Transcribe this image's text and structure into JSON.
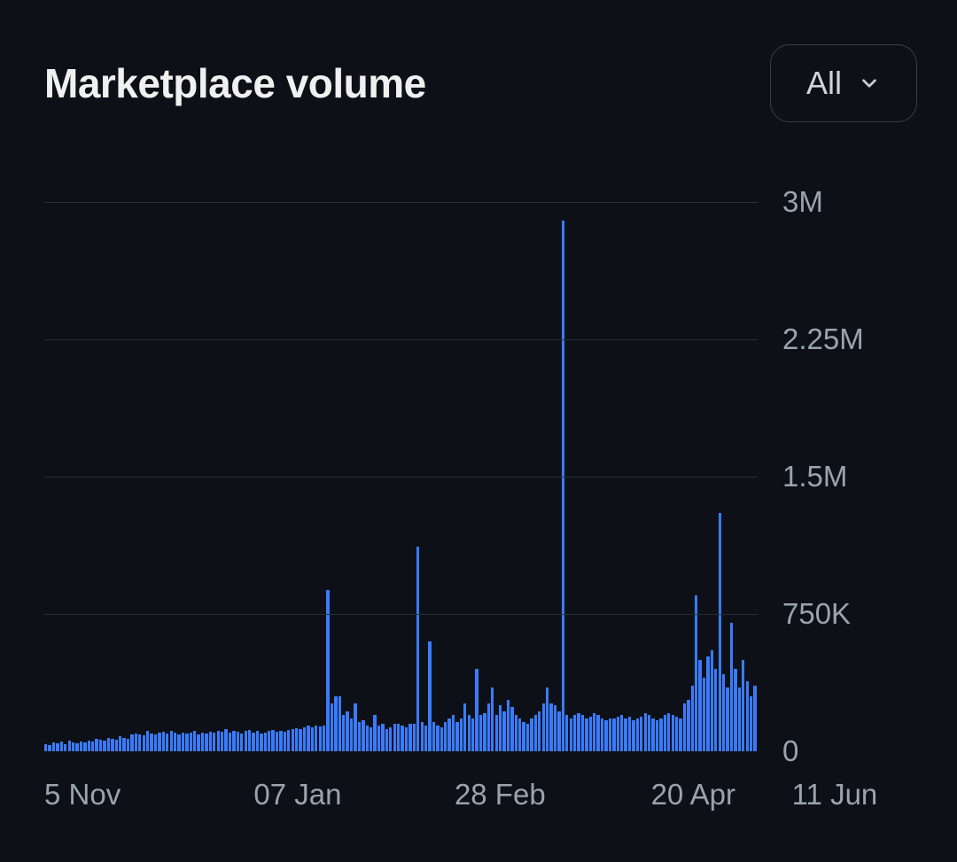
{
  "header": {
    "title": "Marketplace volume",
    "selector_label": "All"
  },
  "chart": {
    "type": "bar",
    "background_color": "#0d1117",
    "bar_color": "#3a7bfd",
    "grid_color": "#2a2f36",
    "text_color": "#9ba3ad",
    "title_color": "#f0f0f0",
    "title_fontsize": 46,
    "axis_fontsize": 33,
    "y": {
      "min": 0,
      "max": 3000000,
      "ticks": [
        {
          "value": 0,
          "label": "0"
        },
        {
          "value": 750000,
          "label": "750K"
        },
        {
          "value": 1500000,
          "label": "1.5M"
        },
        {
          "value": 2250000,
          "label": "2.25M"
        },
        {
          "value": 3000000,
          "label": "3M"
        }
      ]
    },
    "x": {
      "ticks": [
        {
          "pos": 0.0,
          "label": "5 Nov"
        },
        {
          "pos": 0.24,
          "label": "07 Jan"
        },
        {
          "pos": 0.47,
          "label": "28 Feb"
        },
        {
          "pos": 0.695,
          "label": "20 Apr"
        },
        {
          "pos": 0.935,
          "label": "11 Jun"
        }
      ]
    },
    "bar_gap_ratio": 0.25,
    "values": [
      40000,
      35000,
      50000,
      45000,
      55000,
      40000,
      60000,
      50000,
      45000,
      55000,
      50000,
      60000,
      55000,
      70000,
      65000,
      60000,
      75000,
      70000,
      65000,
      80000,
      75000,
      70000,
      90000,
      95000,
      90000,
      85000,
      110000,
      95000,
      90000,
      100000,
      105000,
      95000,
      110000,
      100000,
      90000,
      100000,
      95000,
      100000,
      110000,
      90000,
      100000,
      95000,
      105000,
      100000,
      110000,
      105000,
      120000,
      100000,
      110000,
      105000,
      95000,
      110000,
      115000,
      100000,
      110000,
      95000,
      100000,
      110000,
      115000,
      107000,
      110000,
      105000,
      115000,
      120000,
      125000,
      120000,
      130000,
      140000,
      130000,
      140000,
      135000,
      140000,
      880000,
      260000,
      300000,
      300000,
      200000,
      220000,
      180000,
      260000,
      160000,
      170000,
      140000,
      130000,
      200000,
      140000,
      150000,
      120000,
      130000,
      150000,
      150000,
      140000,
      130000,
      150000,
      150000,
      1120000,
      160000,
      140000,
      600000,
      160000,
      140000,
      130000,
      160000,
      180000,
      200000,
      160000,
      180000,
      260000,
      200000,
      180000,
      450000,
      200000,
      210000,
      260000,
      350000,
      200000,
      250000,
      220000,
      280000,
      240000,
      200000,
      180000,
      160000,
      150000,
      180000,
      200000,
      220000,
      260000,
      350000,
      260000,
      250000,
      220000,
      2900000,
      200000,
      180000,
      200000,
      210000,
      200000,
      180000,
      190000,
      210000,
      200000,
      180000,
      170000,
      180000,
      180000,
      190000,
      200000,
      180000,
      190000,
      170000,
      180000,
      190000,
      210000,
      200000,
      180000,
      170000,
      180000,
      200000,
      210000,
      200000,
      190000,
      180000,
      260000,
      280000,
      360000,
      850000,
      500000,
      400000,
      520000,
      550000,
      450000,
      1300000,
      420000,
      350000,
      700000,
      450000,
      350000,
      500000,
      380000,
      300000,
      360000
    ]
  }
}
